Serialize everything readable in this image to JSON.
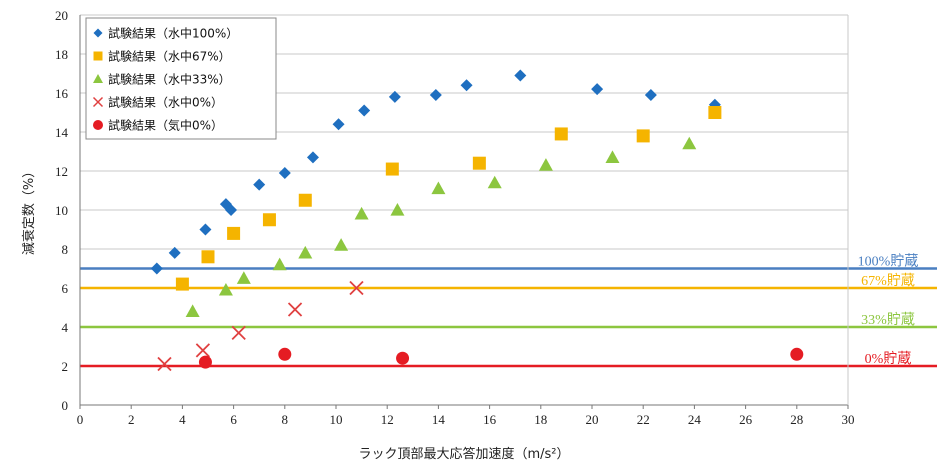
{
  "chart_data": {
    "type": "scatter",
    "xlabel": "ラック頂部最大応答加速度（m/s²）",
    "ylabel": "減衰定数（%）",
    "xlim": [
      0,
      30
    ],
    "ylim": [
      0,
      20
    ],
    "xticks": [
      0,
      2,
      4,
      6,
      8,
      10,
      12,
      14,
      16,
      18,
      20,
      22,
      24,
      26,
      28,
      30
    ],
    "yticks": [
      0,
      2,
      4,
      6,
      8,
      10,
      12,
      14,
      16,
      18,
      20
    ],
    "grid": "horizontal",
    "legend_position": "top-left",
    "series": [
      {
        "name": "試験結果（水中100%）",
        "marker": "diamond",
        "color": "#1f6fc0",
        "points": [
          [
            3.0,
            7.0
          ],
          [
            3.7,
            7.8
          ],
          [
            4.9,
            9.0
          ],
          [
            5.7,
            10.3
          ],
          [
            5.9,
            10.0
          ],
          [
            7.0,
            11.3
          ],
          [
            8.0,
            11.9
          ],
          [
            9.1,
            12.7
          ],
          [
            10.1,
            14.4
          ],
          [
            11.1,
            15.1
          ],
          [
            12.3,
            15.8
          ],
          [
            13.9,
            15.9
          ],
          [
            15.1,
            16.4
          ],
          [
            17.2,
            16.9
          ],
          [
            20.2,
            16.2
          ],
          [
            22.3,
            15.9
          ],
          [
            24.8,
            15.4
          ]
        ]
      },
      {
        "name": "試験結果（水中67%）",
        "marker": "square",
        "color": "#f5b400",
        "points": [
          [
            4.0,
            6.2
          ],
          [
            5.0,
            7.6
          ],
          [
            6.0,
            8.8
          ],
          [
            7.4,
            9.5
          ],
          [
            8.8,
            10.5
          ],
          [
            12.2,
            12.1
          ],
          [
            15.6,
            12.4
          ],
          [
            18.8,
            13.9
          ],
          [
            22.0,
            13.8
          ],
          [
            24.8,
            15.0
          ]
        ]
      },
      {
        "name": "試験結果（水中33%）",
        "marker": "triangle",
        "color": "#8cc63f",
        "points": [
          [
            4.4,
            4.8
          ],
          [
            5.7,
            5.9
          ],
          [
            6.4,
            6.5
          ],
          [
            7.8,
            7.2
          ],
          [
            8.8,
            7.8
          ],
          [
            10.2,
            8.2
          ],
          [
            11.0,
            9.8
          ],
          [
            12.4,
            10.0
          ],
          [
            14.0,
            11.1
          ],
          [
            16.2,
            11.4
          ],
          [
            18.2,
            12.3
          ],
          [
            20.8,
            12.7
          ],
          [
            23.8,
            13.4
          ]
        ]
      },
      {
        "name": "試験結果（水中0%）",
        "marker": "x",
        "color": "#e04040",
        "points": [
          [
            3.3,
            2.1
          ],
          [
            4.8,
            2.8
          ],
          [
            6.2,
            3.7
          ],
          [
            8.4,
            4.9
          ],
          [
            10.8,
            6.0
          ]
        ]
      },
      {
        "name": "試験結果（気中0%）",
        "marker": "circle",
        "color": "#e51c23",
        "points": [
          [
            4.9,
            2.2
          ],
          [
            8.0,
            2.6
          ],
          [
            12.6,
            2.4
          ],
          [
            28.0,
            2.6
          ]
        ]
      }
    ],
    "reference_lines": [
      {
        "label": "100%貯蔵",
        "y": 7,
        "color": "#4a7fc1"
      },
      {
        "label": "67%貯蔵",
        "y": 6,
        "color": "#f5b400"
      },
      {
        "label": "33%貯蔵",
        "y": 4,
        "color": "#8cc63f"
      },
      {
        "label": "0%貯蔵",
        "y": 2,
        "color": "#e51c23"
      }
    ]
  }
}
